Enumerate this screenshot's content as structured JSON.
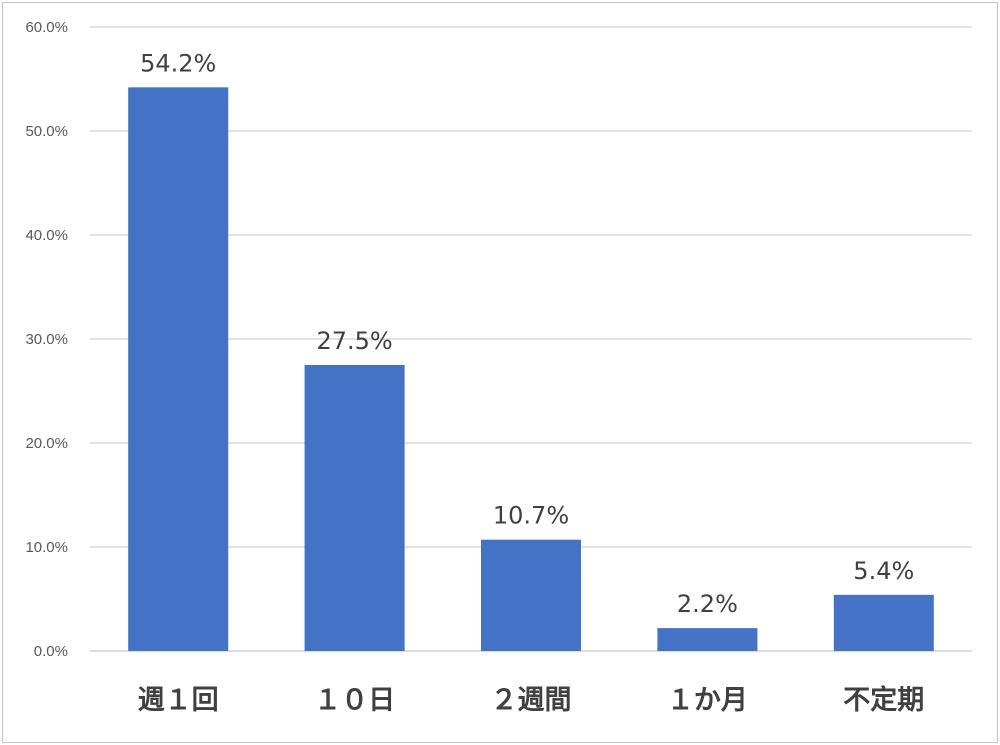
{
  "chart_data": {
    "type": "bar",
    "categories": [
      "週１回",
      "１０日",
      "２週間",
      "１か月",
      "不定期"
    ],
    "values": [
      54.2,
      27.5,
      10.7,
      2.2,
      5.4
    ],
    "data_labels": [
      "54.2%",
      "27.5%",
      "10.7%",
      "2.2%",
      "5.4%"
    ],
    "y_ticks": [
      "0.0%",
      "10.0%",
      "20.0%",
      "30.0%",
      "40.0%",
      "50.0%",
      "60.0%"
    ],
    "ylim": [
      0,
      60
    ],
    "grid": true,
    "bar_color": "#4472C4",
    "title": "",
    "xlabel": "",
    "ylabel": ""
  }
}
